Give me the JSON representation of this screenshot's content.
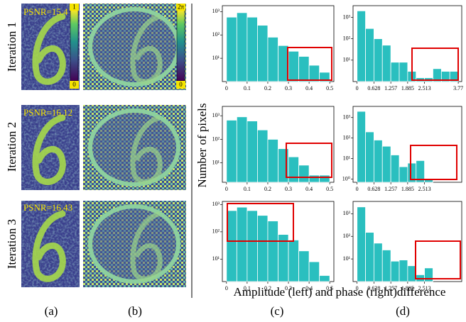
{
  "figure": {
    "row_labels": [
      "Iteration 1",
      "Iteration 2",
      "Iteration 3"
    ],
    "psnr": [
      "PSNR=15.4",
      "PSNR=16.12",
      "PSNR=16.43"
    ],
    "amp_colorbar": [
      "1",
      "0"
    ],
    "phase_colorbar": [
      "2π",
      "0"
    ],
    "y_label": "Number of pixels",
    "x_label": "Amplitude (left) and phase (right)difference",
    "panel_labels": [
      "(a)",
      "(b)",
      "(c)",
      "(d)"
    ]
  },
  "chart_data": [
    {
      "type": "histogram",
      "log_y": true,
      "color": "#2abfbf",
      "bins": [
        0,
        0.05,
        0.1,
        0.15,
        0.2,
        0.25,
        0.3,
        0.35,
        0.4,
        0.45,
        0.5
      ],
      "values": [
        580,
        900,
        580,
        260,
        80,
        35,
        20,
        12,
        5,
        2.5
      ],
      "xlim": [
        -0.02,
        0.52
      ],
      "xticks": [
        0,
        0.1,
        0.2,
        0.3,
        0.4,
        0.5
      ],
      "ylim": [
        1,
        1800
      ],
      "yticks": [
        {
          "value": 10,
          "label": "10¹"
        },
        {
          "value": 100,
          "label": "10²"
        },
        {
          "value": 1000,
          "label": "10³"
        }
      ]
    },
    {
      "type": "histogram",
      "log_y": true,
      "color": "#2abfbf",
      "bins": [
        0,
        0.314,
        0.628,
        0.942,
        1.257,
        1.571,
        1.885,
        2.199,
        2.513,
        2.827,
        3.142,
        3.456,
        3.77
      ],
      "values": [
        2000,
        300,
        100,
        50,
        8,
        8,
        3,
        1.5,
        1.5,
        4,
        3,
        3
      ],
      "xlim": [
        -0.15,
        3.9
      ],
      "xticks": [
        0,
        0.628,
        1.257,
        1.885,
        2.513,
        3.77
      ],
      "ylim": [
        1,
        3500
      ],
      "yticks": [
        {
          "value": 10,
          "label": "10¹"
        },
        {
          "value": 100,
          "label": "10²"
        },
        {
          "value": 1000,
          "label": "10³"
        }
      ]
    },
    {
      "type": "histogram",
      "log_y": true,
      "color": "#2abfbf",
      "bins": [
        0,
        0.05,
        0.1,
        0.15,
        0.2,
        0.25,
        0.3,
        0.35,
        0.4,
        0.45,
        0.5
      ],
      "values": [
        650,
        900,
        600,
        250,
        100,
        40,
        18,
        8,
        3,
        3
      ],
      "xlim": [
        -0.02,
        0.52
      ],
      "xticks": [
        0,
        0.1,
        0.2,
        0.3,
        0.4,
        0.5
      ],
      "ylim": [
        1.5,
        2500
      ],
      "yticks": [
        {
          "value": 10,
          "label": "10¹"
        },
        {
          "value": 100,
          "label": "10²"
        },
        {
          "value": 1000,
          "label": "10³"
        }
      ]
    },
    {
      "type": "histogram",
      "log_y": true,
      "color": "#2abfbf",
      "bins": [
        0,
        0.314,
        0.628,
        0.942,
        1.257,
        1.571,
        1.885,
        2.199,
        2.513,
        2.827
      ],
      "values": [
        2000,
        200,
        80,
        40,
        15,
        4,
        6,
        8,
        1
      ],
      "xlim": [
        -0.15,
        3.9
      ],
      "xticks": [
        0,
        0.628,
        1.257,
        1.885,
        2.513
      ],
      "ylim": [
        0.7,
        3500
      ],
      "yticks": [
        {
          "value": 1,
          "label": "10⁰"
        },
        {
          "value": 10,
          "label": "10¹"
        },
        {
          "value": 100,
          "label": "10²"
        },
        {
          "value": 1000,
          "label": "10³"
        }
      ]
    },
    {
      "type": "histogram",
      "log_y": true,
      "color": "#2abfbf",
      "bins": [
        0,
        0.05,
        0.1,
        0.15,
        0.2,
        0.25,
        0.3,
        0.35,
        0.4,
        0.45,
        0.5
      ],
      "values": [
        600,
        800,
        600,
        400,
        250,
        80,
        50,
        20,
        8,
        2.5
      ],
      "xlim": [
        -0.02,
        0.52
      ],
      "xticks": [
        0,
        0.1,
        0.2,
        0.3,
        0.4,
        0.5
      ],
      "ylim": [
        1.5,
        1300
      ],
      "yticks": [
        {
          "value": 10,
          "label": "10¹"
        },
        {
          "value": 100,
          "label": "10²"
        },
        {
          "value": 1000,
          "label": "10³"
        }
      ]
    },
    {
      "type": "histogram",
      "log_y": true,
      "color": "#2abfbf",
      "bins": [
        0,
        0.314,
        0.628,
        0.942,
        1.257,
        1.571,
        1.885,
        2.199,
        2.513,
        2.827
      ],
      "values": [
        2000,
        150,
        50,
        25,
        8,
        9,
        5,
        2,
        4
      ],
      "xlim": [
        -0.15,
        3.9
      ],
      "xticks": [
        0,
        0.628,
        1.257,
        1.885,
        2.513
      ],
      "ylim": [
        1,
        3500
      ],
      "yticks": [
        {
          "value": 10,
          "label": "10¹"
        },
        {
          "value": 100,
          "label": "10²"
        },
        {
          "value": 1000,
          "label": "10³"
        }
      ]
    }
  ]
}
